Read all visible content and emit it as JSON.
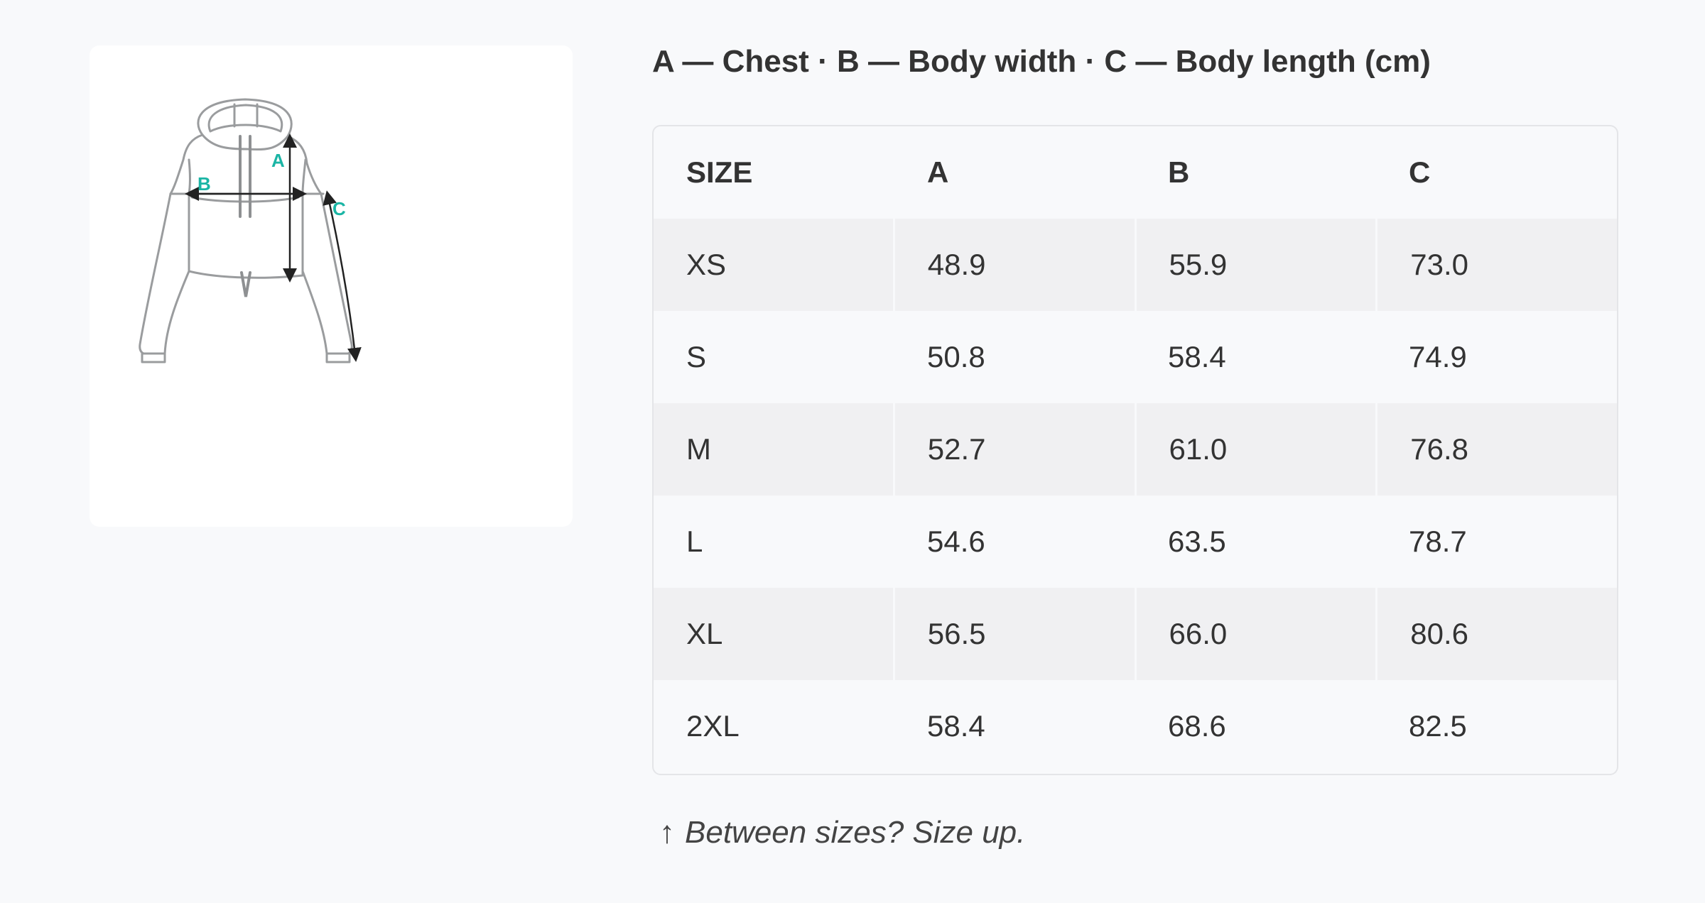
{
  "title": "A — Chest · B — Body width · C — Body length (cm)",
  "illustration": {
    "labels": {
      "a": "A",
      "b": "B",
      "c": "C"
    },
    "accent_color": "#1bb5a5",
    "outline_color": "#9a9c9e"
  },
  "table": {
    "headers": [
      "SIZE",
      "A",
      "B",
      "C"
    ],
    "rows": [
      [
        "XS",
        "48.9",
        "55.9",
        "73.0"
      ],
      [
        "S",
        "50.8",
        "58.4",
        "74.9"
      ],
      [
        "M",
        "52.7",
        "61.0",
        "76.8"
      ],
      [
        "L",
        "54.6",
        "63.5",
        "78.7"
      ],
      [
        "XL",
        "56.5",
        "66.0",
        "80.6"
      ],
      [
        "2XL",
        "58.4",
        "68.6",
        "82.5"
      ]
    ]
  },
  "note": {
    "icon": "arrow-up-icon",
    "icon_glyph": "↑",
    "text": "Between sizes? Size up."
  }
}
